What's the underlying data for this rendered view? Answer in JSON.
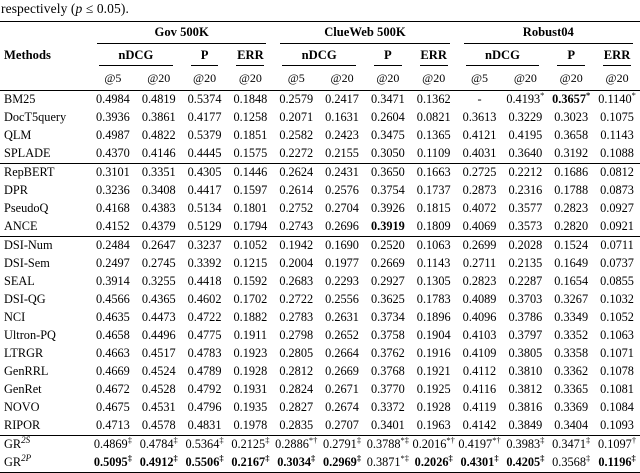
{
  "caption": {
    "pre": "respectively (",
    "var": "p",
    "post": " ≤ 0.05)."
  },
  "table": {
    "methods_header": "Methods",
    "datasets": [
      {
        "label": "Gov 500K"
      },
      {
        "label": "ClueWeb 500K"
      },
      {
        "label": "Robust04"
      }
    ],
    "metrics": [
      "nDCG",
      "P",
      "ERR"
    ],
    "at_labels": [
      "@5",
      "@20",
      "@20",
      "@20"
    ],
    "groups": [
      {
        "rows": [
          {
            "method": "BM25",
            "cells": [
              "0.4984",
              "0.4819",
              "0.5374",
              "0.1848",
              "0.2579",
              "0.2417",
              "0.3471",
              "0.1362",
              "-",
              {
                "v": "0.4193",
                "sup": "*"
              },
              {
                "v": "0.3657",
                "sup": "*",
                "b": true
              },
              {
                "v": "0.1140",
                "sup": "*"
              }
            ]
          },
          {
            "method": "DocT5query",
            "cells": [
              "0.3936",
              "0.3861",
              "0.4177",
              "0.1258",
              "0.2071",
              "0.1631",
              "0.2604",
              "0.0821",
              "0.3613",
              "0.3229",
              "0.3023",
              "0.1075"
            ]
          },
          {
            "method": "QLM",
            "cells": [
              "0.4987",
              "0.4822",
              "0.5379",
              "0.1851",
              "0.2582",
              "0.2423",
              "0.3475",
              "0.1365",
              "0.4121",
              "0.4195",
              "0.3658",
              "0.1143"
            ]
          },
          {
            "method": "SPLADE",
            "cells": [
              "0.4370",
              "0.4146",
              "0.4445",
              "0.1575",
              "0.2272",
              "0.2155",
              "0.3050",
              "0.1109",
              "0.4031",
              "0.3640",
              "0.3192",
              "0.1088"
            ]
          }
        ]
      },
      {
        "rows": [
          {
            "method": "RepBERT",
            "cells": [
              "0.3101",
              "0.3351",
              "0.4305",
              "0.1446",
              "0.2624",
              "0.2431",
              "0.3650",
              "0.1663",
              "0.2725",
              "0.2212",
              "0.1686",
              "0.0812"
            ]
          },
          {
            "method": "DPR",
            "cells": [
              "0.3236",
              "0.3408",
              "0.4417",
              "0.1597",
              "0.2614",
              "0.2576",
              "0.3754",
              "0.1737",
              "0.2873",
              "0.2316",
              "0.1788",
              "0.0873"
            ]
          },
          {
            "method": "PseudoQ",
            "cells": [
              "0.4168",
              "0.4383",
              "0.5134",
              "0.1801",
              "0.2752",
              "0.2704",
              "0.3926",
              "0.1815",
              "0.4072",
              "0.3577",
              "0.2823",
              "0.0927"
            ]
          },
          {
            "method": "ANCE",
            "cells": [
              "0.4152",
              "0.4379",
              "0.5129",
              "0.1794",
              "0.2743",
              "0.2696",
              {
                "v": "0.3919",
                "b": true
              },
              "0.1809",
              "0.4069",
              "0.3573",
              "0.2820",
              "0.0921"
            ]
          }
        ]
      },
      {
        "rows": [
          {
            "method": "DSI-Num",
            "cells": [
              "0.2484",
              "0.2647",
              "0.3237",
              "0.1052",
              "0.1942",
              "0.1690",
              "0.2520",
              "0.1063",
              "0.2699",
              "0.2028",
              "0.1524",
              "0.0711"
            ]
          },
          {
            "method": "DSI-Sem",
            "cells": [
              "0.2497",
              "0.2745",
              "0.3392",
              "0.1215",
              "0.2004",
              "0.1977",
              "0.2669",
              "0.1143",
              "0.2711",
              "0.2135",
              "0.1649",
              "0.0737"
            ]
          },
          {
            "method": "SEAL",
            "cells": [
              "0.3914",
              "0.3255",
              "0.4418",
              "0.1592",
              "0.2683",
              "0.2293",
              "0.2927",
              "0.1305",
              "0.2823",
              "0.2287",
              "0.1654",
              "0.0855"
            ]
          },
          {
            "method": "DSI-QG",
            "cells": [
              "0.4566",
              "0.4365",
              "0.4602",
              "0.1702",
              "0.2722",
              "0.2556",
              "0.3625",
              "0.1783",
              "0.4089",
              "0.3703",
              "0.3267",
              "0.1032"
            ]
          },
          {
            "method": "NCI",
            "cells": [
              "0.4635",
              "0.4473",
              "0.4722",
              "0.1882",
              "0.2783",
              "0.2631",
              "0.3734",
              "0.1896",
              "0.4096",
              "0.3786",
              "0.3349",
              "0.1052"
            ]
          },
          {
            "method": "Ultron-PQ",
            "cells": [
              "0.4658",
              "0.4496",
              "0.4775",
              "0.1911",
              "0.2798",
              "0.2652",
              "0.3758",
              "0.1904",
              "0.4103",
              "0.3797",
              "0.3352",
              "0.1063"
            ]
          },
          {
            "method": "LTRGR",
            "cells": [
              "0.4663",
              "0.4517",
              "0.4783",
              "0.1923",
              "0.2805",
              "0.2664",
              "0.3762",
              "0.1916",
              "0.4109",
              "0.3805",
              "0.3358",
              "0.1071"
            ]
          },
          {
            "method": "GenRRL",
            "cells": [
              "0.4669",
              "0.4524",
              "0.4789",
              "0.1928",
              "0.2812",
              "0.2669",
              "0.3768",
              "0.1921",
              "0.4112",
              "0.3810",
              "0.3362",
              "0.1078"
            ]
          },
          {
            "method": "GenRet",
            "cells": [
              "0.4672",
              "0.4528",
              "0.4792",
              "0.1931",
              "0.2824",
              "0.2671",
              "0.3770",
              "0.1925",
              "0.4116",
              "0.3812",
              "0.3365",
              "0.1081"
            ]
          },
          {
            "method": "NOVO",
            "cells": [
              "0.4675",
              "0.4531",
              "0.4796",
              "0.1935",
              "0.2827",
              "0.2674",
              "0.3372",
              "0.1928",
              "0.4119",
              "0.3816",
              "0.3369",
              "0.1084"
            ]
          },
          {
            "method": "RIPOR",
            "cells": [
              "0.4713",
              "0.4578",
              "0.4831",
              "0.1978",
              "0.2835",
              "0.2707",
              "0.3401",
              "0.1963",
              "0.4142",
              "0.3849",
              "0.3404",
              "0.1093"
            ]
          }
        ]
      },
      {
        "rows": [
          {
            "method": {
              "name": "GR",
              "sup": "2S"
            },
            "cells": [
              {
                "v": "0.4869",
                "sup": "‡"
              },
              {
                "v": "0.4784",
                "sup": "‡"
              },
              {
                "v": "0.5364",
                "sup": "‡"
              },
              {
                "v": "0.2125",
                "sup": "‡"
              },
              {
                "v": "0.2886",
                "sup": "*†"
              },
              {
                "v": "0.2791",
                "sup": "‡"
              },
              {
                "v": "0.3788",
                "sup": "*‡"
              },
              {
                "v": "0.2016",
                "sup": "*†"
              },
              {
                "v": "0.4197",
                "sup": "*†"
              },
              {
                "v": "0.3983",
                "sup": "‡"
              },
              {
                "v": "0.3471",
                "sup": "‡"
              },
              {
                "v": "0.1097",
                "sup": "†"
              }
            ]
          },
          {
            "method": {
              "name": "GR",
              "sup": "2P"
            },
            "cells": [
              {
                "v": "0.5095",
                "sup": "‡",
                "b": true
              },
              {
                "v": "0.4912",
                "sup": "‡",
                "b": true
              },
              {
                "v": "0.5506",
                "sup": "‡",
                "b": true
              },
              {
                "v": "0.2167",
                "sup": "‡",
                "b": true
              },
              {
                "v": "0.3034",
                "sup": "‡",
                "b": true
              },
              {
                "v": "0.2969",
                "sup": "‡",
                "b": true
              },
              {
                "v": "0.3871",
                "sup": "*‡"
              },
              {
                "v": "0.2026",
                "sup": "‡",
                "b": true
              },
              {
                "v": "0.4301",
                "sup": "‡",
                "b": true
              },
              {
                "v": "0.4205",
                "sup": "‡",
                "b": true
              },
              {
                "v": "0.3568",
                "sup": "‡"
              },
              {
                "v": "0.1196",
                "sup": "‡",
                "b": true
              }
            ]
          }
        ]
      }
    ]
  }
}
